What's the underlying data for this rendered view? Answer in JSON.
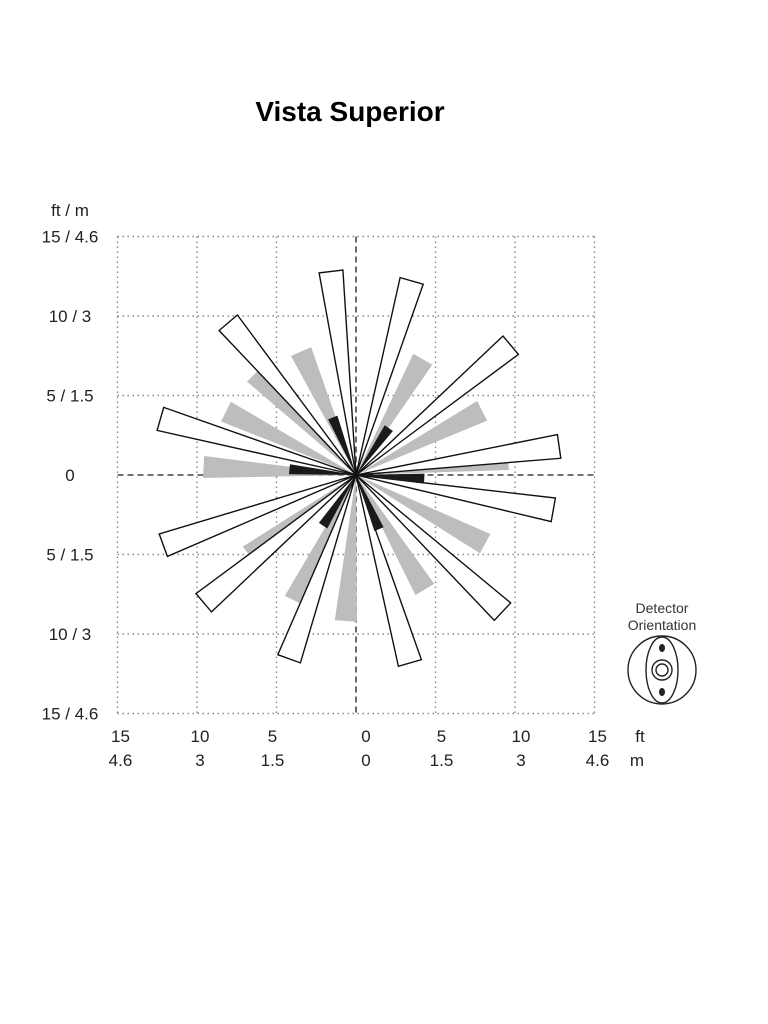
{
  "title": "Vista Superior",
  "y_axis": {
    "unit_label": "ft / m",
    "tick_labels": [
      "15 / 4.6",
      "10 / 3",
      "5 / 1.5",
      "0",
      "5 / 1.5",
      "10 / 3",
      "15 / 4.6"
    ]
  },
  "x_axis": {
    "ft_labels": [
      "15",
      "10",
      "5",
      "0",
      "5",
      "10",
      "15"
    ],
    "m_labels": [
      "4.6",
      "3",
      "1.5",
      "0",
      "1.5",
      "3",
      "4.6"
    ],
    "ft_unit": "ft",
    "m_unit": "m"
  },
  "grid": {
    "range_ft": 15,
    "step_ft": 5
  },
  "detection_pattern": {
    "outer_zones": [
      {
        "angle_deg": 8,
        "reach_ft": 12.9
      },
      {
        "angle_deg": 40,
        "reach_ft": 12.7
      },
      {
        "angle_deg": 74,
        "reach_ft": 12.7
      },
      {
        "angle_deg": 97,
        "reach_ft": 12.9
      },
      {
        "angle_deg": 130,
        "reach_ft": 12.5
      },
      {
        "angle_deg": 164,
        "reach_ft": 12.8
      },
      {
        "angle_deg": -10,
        "reach_ft": 12.6
      },
      {
        "angle_deg": -43,
        "reach_ft": 12.6
      },
      {
        "angle_deg": -74,
        "reach_ft": 12.3
      },
      {
        "angle_deg": -110,
        "reach_ft": 12.3
      },
      {
        "angle_deg": -140,
        "reach_ft": 12.5
      },
      {
        "angle_deg": -160,
        "reach_ft": 12.9
      }
    ],
    "mid_zones": [
      {
        "angle_deg": 6,
        "reach_ft": 9.6
      },
      {
        "angle_deg": 27,
        "reach_ft": 8.9
      },
      {
        "angle_deg": 60,
        "reach_ft": 8.4
      },
      {
        "angle_deg": 114,
        "reach_ft": 8.5
      },
      {
        "angle_deg": 135,
        "reach_ft": 9.0
      },
      {
        "angle_deg": 154,
        "reach_ft": 9.1
      },
      {
        "angle_deg": 177,
        "reach_ft": 9.6
      },
      {
        "angle_deg": -28,
        "reach_ft": 9.2
      },
      {
        "angle_deg": -59,
        "reach_ft": 8.4
      },
      {
        "angle_deg": -94,
        "reach_ft": 9.2
      },
      {
        "angle_deg": -116,
        "reach_ft": 8.8
      },
      {
        "angle_deg": -143,
        "reach_ft": 8.4
      }
    ],
    "near_zones": [
      {
        "angle_deg": -3,
        "reach_ft": 4.3
      },
      {
        "angle_deg": 55,
        "reach_ft": 3.6
      },
      {
        "angle_deg": 112,
        "reach_ft": 3.9
      },
      {
        "angle_deg": 175,
        "reach_ft": 4.2
      },
      {
        "angle_deg": -123,
        "reach_ft": 3.8
      },
      {
        "angle_deg": -67,
        "reach_ft": 3.7
      }
    ],
    "colors": {
      "outer_fill": "#ffffff",
      "outer_stroke": "#111111",
      "mid_fill": "#bdbdbd",
      "near_fill": "#1a1a1a"
    }
  },
  "legend": {
    "line1": "Detector",
    "line2": "Orientation",
    "icon": "detector-orientation-icon"
  }
}
